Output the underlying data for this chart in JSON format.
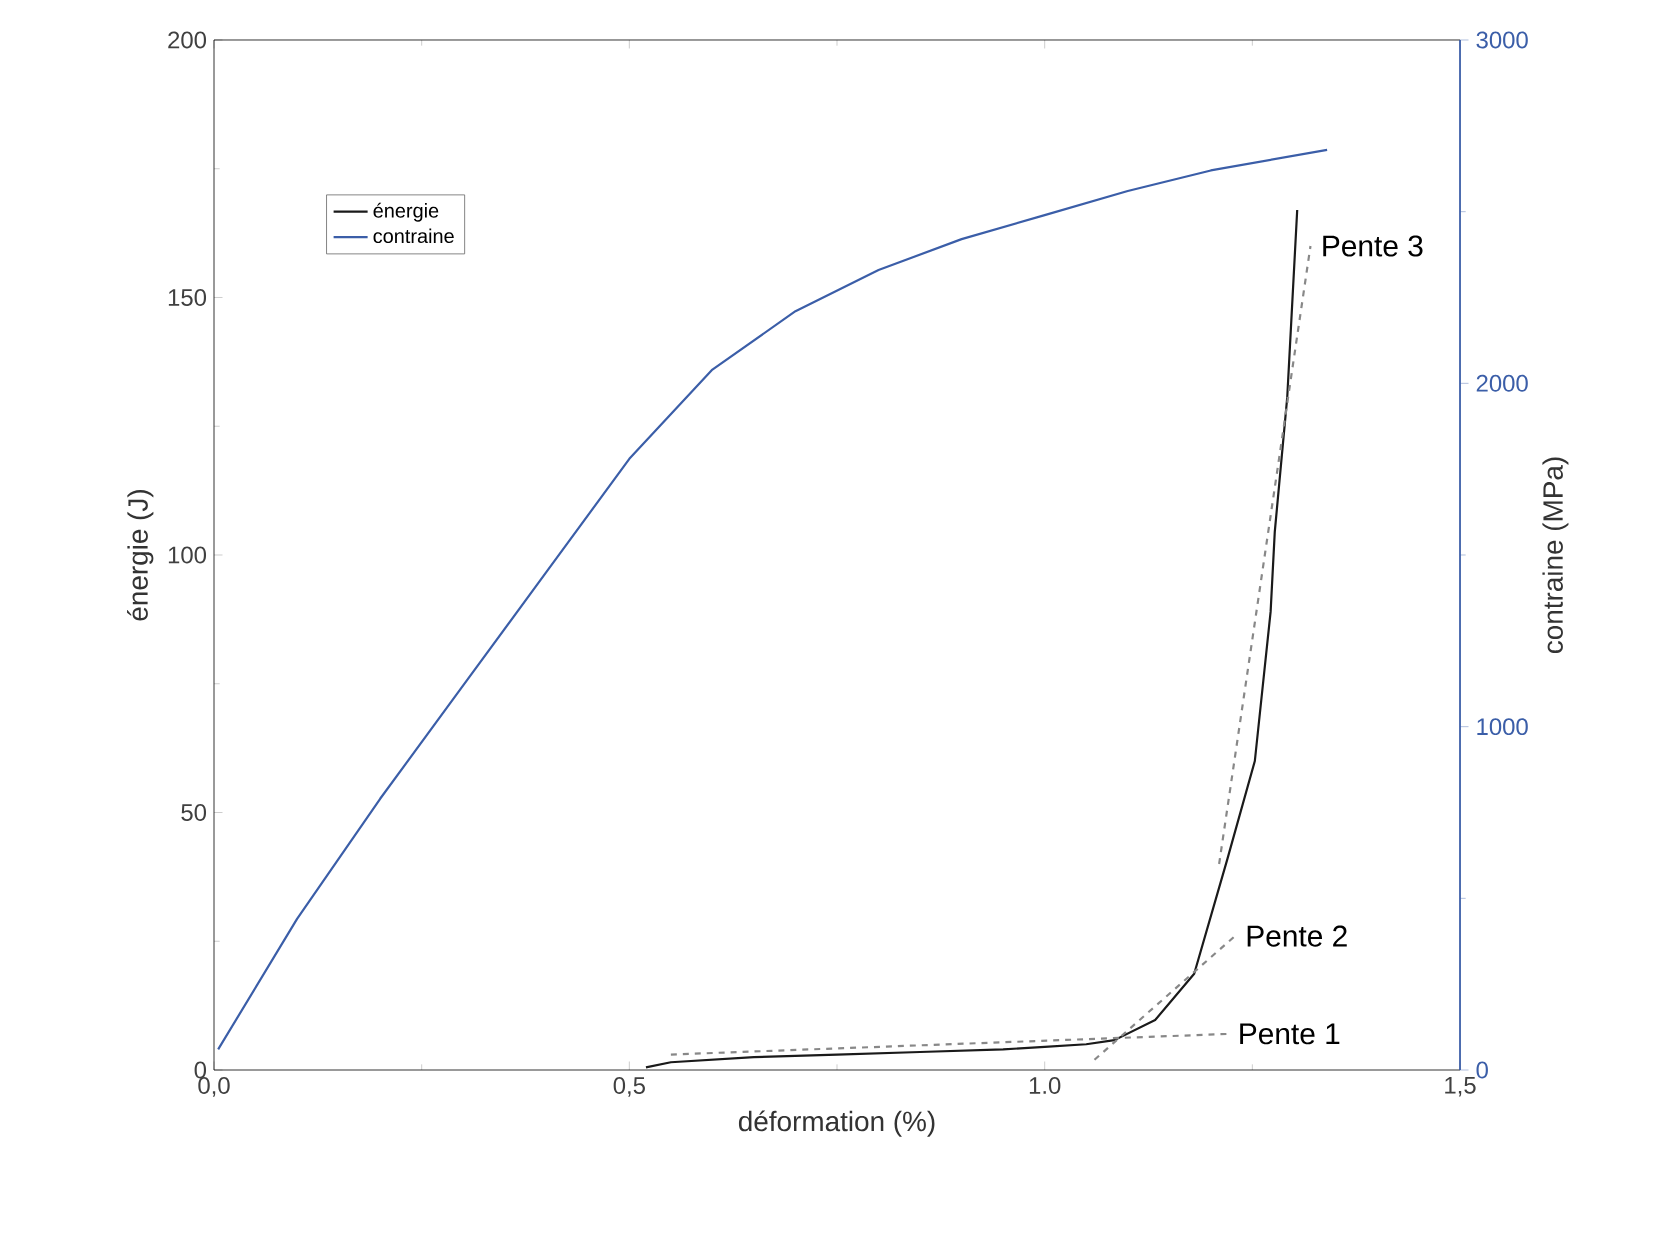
{
  "chart_data": {
    "type": "line",
    "xlabel": "déformation (%)",
    "ylabel": "énergie (J)",
    "y2label": "contraine (MPa)",
    "xlim": [
      0,
      1.5
    ],
    "xticks": [
      {
        "value": 0,
        "label": "0,0"
      },
      {
        "value": 0.5,
        "label": "0,5"
      },
      {
        "value": 1,
        "label": "1.0"
      },
      {
        "value": 1.5,
        "label": "1,5"
      }
    ],
    "ylim": [
      0,
      200
    ],
    "yticks": [
      0,
      50,
      100,
      150,
      200
    ],
    "y2lim": [
      0,
      3000
    ],
    "y2ticks": [
      0,
      1000,
      2000,
      3000
    ],
    "grid": false,
    "legend": "top left",
    "marker": "none",
    "series": [
      {
        "name": "énergie",
        "color": "#1a1a1a",
        "axis": "y",
        "x": [
          0.52,
          0.55,
          0.65,
          0.75,
          0.85,
          0.95,
          1.0,
          1.05,
          1.084,
          1.133,
          1.18,
          1.22,
          1.253,
          1.272,
          1.277,
          1.292,
          1.304
        ],
        "values": [
          0.5,
          1.5,
          2.5,
          3,
          3.5,
          4,
          4.5,
          5,
          5.8,
          9.7,
          18.7,
          41,
          60,
          89,
          104.5,
          130.6,
          167
        ]
      },
      {
        "name": "contraine",
        "color": "#3b5ea8",
        "axis": "y2",
        "x": [
          0.005,
          0.1,
          0.2,
          0.3,
          0.4,
          0.5,
          0.6,
          0.7,
          0.8,
          0.9,
          1.0,
          1.1,
          1.2,
          1.34
        ],
        "values": [
          60,
          440,
          790,
          1120,
          1450,
          1780,
          2040,
          2210,
          2330,
          2420,
          2490,
          2560,
          2620,
          2680
        ]
      },
      {
        "type": "line",
        "color": "#888888",
        "line_style": "dashed",
        "axis": "y",
        "x": [
          0.55,
          1.22
        ],
        "values": [
          3,
          7
        ]
      },
      {
        "type": "line",
        "color": "#888888",
        "line_style": "dashed",
        "axis": "y",
        "x": [
          1.06,
          1.229
        ],
        "values": [
          2,
          26
        ]
      },
      {
        "type": "line",
        "color": "#888888",
        "line_style": "dashed",
        "axis": "y",
        "x": [
          1.21,
          1.32
        ],
        "values": [
          40,
          160
        ]
      }
    ],
    "annotations": [
      "Pente 1",
      "Pente 2",
      "Pente 3"
    ]
  }
}
